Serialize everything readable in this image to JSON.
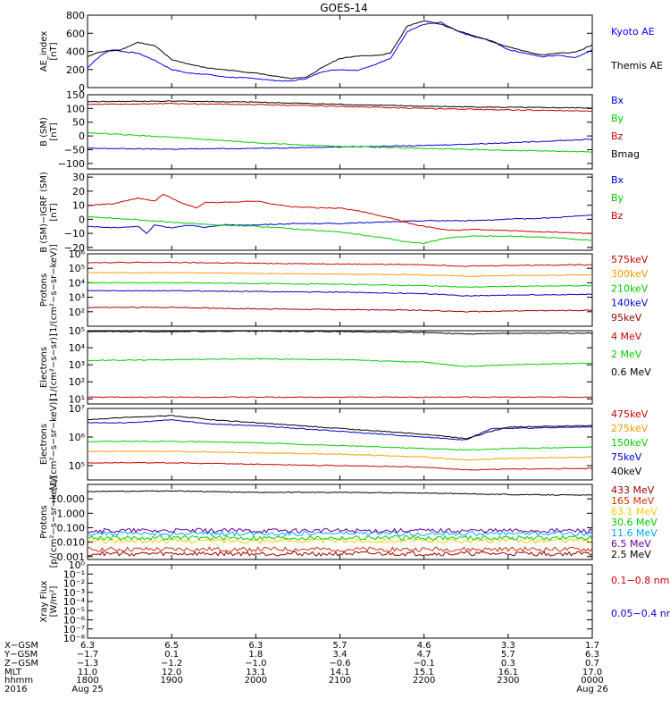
{
  "title": "GOES-14",
  "chart_data": [
    {
      "type": "line",
      "ylabel": "AE_index\n[nT]",
      "yaxis": {
        "scale": "linear",
        "min": 0,
        "max": 800,
        "ticks": [
          "800",
          "600",
          "400",
          "200",
          "0"
        ],
        "tick_values": [
          800,
          600,
          400,
          200,
          0
        ]
      },
      "series": [
        {
          "name": "Kyoto AE",
          "color": "#0000ff",
          "x": [
            0,
            0.1,
            0.2,
            0.3,
            0.4,
            0.6,
            0.8,
            1,
            1.2,
            1.4,
            1.6,
            1.8,
            2,
            2.2,
            2.4,
            2.6,
            2.8,
            3,
            3.2,
            3.4,
            3.6,
            3.8,
            4,
            4.2,
            4.4,
            4.6,
            4.8,
            5,
            5.2,
            5.4,
            5.6,
            5.8,
            6
          ],
          "y": [
            220,
            310,
            380,
            420,
            400,
            380,
            300,
            200,
            160,
            150,
            120,
            110,
            100,
            80,
            70,
            100,
            180,
            200,
            190,
            250,
            320,
            620,
            700,
            720,
            620,
            560,
            520,
            420,
            380,
            340,
            360,
            330,
            420
          ]
        },
        {
          "name": "Themis AE",
          "color": "#000000",
          "x": [
            0,
            0.1,
            0.2,
            0.3,
            0.4,
            0.6,
            0.8,
            1,
            1.2,
            1.4,
            1.6,
            1.8,
            2,
            2.2,
            2.4,
            2.6,
            2.8,
            3,
            3.2,
            3.4,
            3.6,
            3.8,
            4,
            4.2,
            4.4,
            4.6,
            4.8,
            5,
            5.2,
            5.4,
            5.6,
            5.8,
            6
          ],
          "y": [
            340,
            380,
            400,
            410,
            420,
            500,
            460,
            310,
            260,
            220,
            200,
            180,
            160,
            130,
            100,
            110,
            230,
            320,
            350,
            350,
            380,
            680,
            740,
            700,
            630,
            570,
            510,
            450,
            400,
            360,
            380,
            390,
            470
          ]
        }
      ],
      "legend": [
        "Kyoto AE",
        "Themis AE"
      ]
    },
    {
      "type": "line",
      "ylabel": "B (SM)\n[nT]",
      "yaxis": {
        "scale": "linear",
        "min": -120,
        "max": 150,
        "ticks": [
          "150",
          "100",
          "50",
          "0",
          "−50",
          "−100"
        ],
        "tick_values": [
          150,
          100,
          50,
          0,
          -50,
          -100
        ]
      },
      "series": [
        {
          "name": "Bx",
          "color": "#0000cc",
          "x": [
            0,
            1,
            2,
            3,
            4,
            5,
            6
          ],
          "y": [
            -45,
            -48,
            -45,
            -40,
            -35,
            -25,
            -12
          ]
        },
        {
          "name": "By",
          "color": "#00cc00",
          "x": [
            0,
            1,
            2,
            3,
            4,
            5,
            6
          ],
          "y": [
            12,
            -5,
            -25,
            -38,
            -45,
            -52,
            -58
          ]
        },
        {
          "name": "Bz",
          "color": "#cc0000",
          "x": [
            0,
            1,
            2,
            3,
            4,
            5,
            6
          ],
          "y": [
            115,
            118,
            114,
            108,
            100,
            95,
            90
          ]
        },
        {
          "name": "Bmag",
          "color": "#000000",
          "x": [
            0,
            1,
            2,
            3,
            4,
            5,
            6
          ],
          "y": [
            125,
            127,
            123,
            115,
            108,
            104,
            102
          ]
        }
      ],
      "legend": [
        "Bx",
        "By",
        "Bz",
        "Bmag"
      ]
    },
    {
      "type": "line",
      "ylabel": "B (SM)−IGRF (SM)\n[nT]",
      "yaxis": {
        "scale": "linear",
        "min": -22,
        "max": 32,
        "ticks": [
          "30",
          "20",
          "10",
          "0",
          "−10",
          "−20"
        ],
        "tick_values": [
          30,
          20,
          10,
          0,
          -10,
          -20
        ]
      },
      "series": [
        {
          "name": "Bx",
          "color": "#0000cc",
          "x": [
            0,
            0.3,
            0.6,
            0.7,
            0.8,
            1,
            1.2,
            1.4,
            1.6,
            2,
            2.5,
            3,
            3.5,
            4,
            4.5,
            5,
            5.5,
            6
          ],
          "y": [
            -5,
            -6,
            -5,
            -10,
            -4,
            -6,
            -4,
            -6,
            -4,
            -4,
            -3,
            -3,
            -2,
            -1,
            -1,
            0,
            1,
            3
          ]
        },
        {
          "name": "By",
          "color": "#00cc00",
          "x": [
            0,
            0.5,
            1,
            1.5,
            2,
            2.5,
            3,
            3.5,
            3.8,
            4,
            4.3,
            4.6,
            5,
            5.5,
            6
          ],
          "y": [
            2,
            0,
            -2,
            -4,
            -5,
            -7,
            -9,
            -13,
            -16,
            -17,
            -13,
            -12,
            -12,
            -13,
            -15
          ]
        },
        {
          "name": "Bz",
          "color": "#cc0000",
          "x": [
            0,
            0.3,
            0.6,
            0.8,
            0.9,
            1.1,
            1.3,
            1.4,
            1.6,
            2,
            2.4,
            2.8,
            3,
            3.3,
            3.6,
            3.9,
            4.2,
            4.4,
            4.6,
            5,
            5.5,
            6
          ],
          "y": [
            10,
            11,
            15,
            13,
            18,
            12,
            8,
            12,
            12,
            13,
            9,
            8,
            8,
            5,
            1,
            -4,
            -7,
            -8,
            -7,
            -8,
            -9,
            -10
          ]
        }
      ],
      "legend": [
        "Bx",
        "By",
        "Bz"
      ]
    },
    {
      "type": "line",
      "ylabel": "Protons\n[1/(cm²−s−sr−keV)]",
      "yaxis": {
        "scale": "log",
        "min": 1,
        "max": 6,
        "ticks": [
          "10⁶",
          "10⁵",
          "10⁴",
          "10³",
          "10²"
        ],
        "tick_values": [
          6,
          5,
          4,
          3,
          2
        ]
      },
      "series": [
        {
          "name": "575keV",
          "color": "#cc0000",
          "x": [
            0,
            1,
            2,
            3,
            4,
            4.5,
            5,
            6
          ],
          "y": [
            5.4,
            5.4,
            5.35,
            5.3,
            5.25,
            5.15,
            5.2,
            5.25
          ]
        },
        {
          "name": "300keV",
          "color": "#ff9900",
          "x": [
            0,
            1,
            2,
            3,
            4,
            4.5,
            5,
            6
          ],
          "y": [
            4.7,
            4.7,
            4.65,
            4.6,
            4.55,
            4.45,
            4.5,
            4.55
          ]
        },
        {
          "name": "210keV",
          "color": "#00cc00",
          "x": [
            0,
            1,
            2,
            3,
            4,
            4.5,
            5,
            6
          ],
          "y": [
            4.0,
            4.0,
            3.95,
            3.9,
            3.8,
            3.7,
            3.75,
            3.8
          ]
        },
        {
          "name": "140keV",
          "color": "#0000cc",
          "x": [
            0,
            1,
            2,
            3,
            4,
            4.5,
            5,
            6
          ],
          "y": [
            3.45,
            3.45,
            3.4,
            3.35,
            3.25,
            3.1,
            3.15,
            3.2
          ]
        },
        {
          "name": "95keV",
          "color": "#990000",
          "x": [
            0,
            1,
            2,
            3,
            4,
            4.5,
            5,
            6
          ],
          "y": [
            2.3,
            2.3,
            2.2,
            2.15,
            2.1,
            2.0,
            2.05,
            2.1
          ]
        }
      ],
      "legend": [
        "575keV",
        "300keV",
        "210keV",
        "140keV",
        "95keV"
      ]
    },
    {
      "type": "line",
      "ylabel": "Electrons\n[1/(cm²−s−sr)]",
      "yaxis": {
        "scale": "log",
        "min": 0.7,
        "max": 5,
        "ticks": [
          "10⁵",
          "10⁴",
          "10³",
          "10²",
          "10¹"
        ],
        "tick_values": [
          5,
          4,
          3,
          2,
          1
        ]
      },
      "series": [
        {
          "name": "4 MeV",
          "color": "#cc0000",
          "x": [
            0,
            1,
            2,
            3,
            4,
            5,
            6
          ],
          "y": [
            1.1,
            1.1,
            1.1,
            1.1,
            1.1,
            1.1,
            1.1
          ]
        },
        {
          "name": "2 MeV",
          "color": "#00cc00",
          "x": [
            0,
            1,
            2,
            3,
            4,
            4.5,
            5,
            6
          ],
          "y": [
            3.25,
            3.3,
            3.35,
            3.3,
            3.15,
            2.9,
            3.0,
            3.1
          ]
        },
        {
          "name": "0.6 MeV",
          "color": "#000000",
          "x": [
            0,
            1,
            2,
            3,
            4,
            4.5,
            5,
            6
          ],
          "y": [
            4.95,
            4.95,
            4.97,
            4.95,
            4.9,
            4.8,
            4.85,
            4.85
          ]
        }
      ],
      "legend": [
        "4 MeV",
        "2 MeV",
        "0.6 MeV"
      ]
    },
    {
      "type": "line",
      "ylabel": "Electrons\n[1/(cm²−s−sr−keV)]",
      "yaxis": {
        "scale": "log",
        "min": 4.5,
        "max": 7,
        "ticks": [
          "10⁷",
          "10⁶",
          "10⁵"
        ],
        "tick_values": [
          7,
          6,
          5
        ]
      },
      "series": [
        {
          "name": "475keV",
          "color": "#cc0000",
          "x": [
            0,
            1,
            2,
            3,
            4,
            4.5,
            5,
            6
          ],
          "y": [
            5.1,
            5.1,
            5.05,
            5.0,
            4.95,
            4.85,
            4.88,
            4.9
          ]
        },
        {
          "name": "275keV",
          "color": "#ff9900",
          "x": [
            0,
            1,
            2,
            3,
            4,
            4.5,
            5,
            6
          ],
          "y": [
            5.5,
            5.5,
            5.45,
            5.4,
            5.3,
            5.2,
            5.25,
            5.3
          ]
        },
        {
          "name": "150keV",
          "color": "#00cc00",
          "x": [
            0,
            1,
            2,
            3,
            4,
            4.5,
            5,
            6
          ],
          "y": [
            5.85,
            5.85,
            5.8,
            5.7,
            5.6,
            5.55,
            5.6,
            5.65
          ]
        },
        {
          "name": "75keV",
          "color": "#0000cc",
          "x": [
            0,
            0.5,
            1,
            1.5,
            2,
            3,
            4,
            4.5,
            4.8,
            5,
            6
          ],
          "y": [
            6.5,
            6.5,
            6.6,
            6.45,
            6.4,
            6.2,
            6.0,
            5.9,
            6.3,
            6.3,
            6.35
          ]
        },
        {
          "name": "40keV",
          "color": "#000000",
          "x": [
            0,
            0.5,
            1,
            1.5,
            2,
            3,
            4,
            4.5,
            4.8,
            5,
            6
          ],
          "y": [
            6.6,
            6.7,
            6.75,
            6.6,
            6.5,
            6.3,
            6.1,
            5.95,
            6.2,
            6.35,
            6.4
          ]
        }
      ],
      "legend": [
        "475keV",
        "275keV",
        "150keV",
        "75keV",
        "40keV"
      ]
    },
    {
      "type": "line",
      "ylabel": "Protons\n[p/(cm²−s−sr−keV)]",
      "yaxis": {
        "scale": "log",
        "min": -3.2,
        "max": 2,
        "ticks": [
          "10.000",
          "1.000",
          "0.100",
          "0.010",
          "0.001"
        ],
        "tick_values": [
          1,
          0,
          -1,
          -2,
          -3
        ]
      },
      "series": [
        {
          "name": "433 MeV",
          "color": "#990000",
          "x": [
            0,
            6
          ],
          "y": [
            -2.8,
            -2.8
          ]
        },
        {
          "name": "165 MeV",
          "color": "#cc3300",
          "x": [
            0,
            6
          ],
          "y": [
            -2.5,
            -2.5
          ]
        },
        {
          "name": "63.1 MeV",
          "color": "#ffcc00",
          "x": [
            0,
            6
          ],
          "y": [
            -1.9,
            -1.9
          ]
        },
        {
          "name": "30.6 MeV",
          "color": "#00cc00",
          "x": [
            0,
            6
          ],
          "y": [
            -1.7,
            -1.7
          ]
        },
        {
          "name": "11.6 MeV",
          "color": "#00aaff",
          "x": [
            0,
            6
          ],
          "y": [
            -1.4,
            -1.4
          ]
        },
        {
          "name": "6.5 MeV",
          "color": "#660099",
          "x": [
            0,
            6
          ],
          "y": [
            -1.2,
            -1.2
          ]
        },
        {
          "name": "2.5 MeV",
          "color": "#000000",
          "x": [
            0,
            1,
            2,
            3,
            4,
            5,
            6
          ],
          "y": [
            1.5,
            1.55,
            1.45,
            1.45,
            1.4,
            1.3,
            1.25
          ]
        }
      ],
      "legend": [
        "433 MeV",
        "165 MeV",
        "63.1 MeV",
        "30.6 MeV",
        "11.6 MeV",
        "6.5 MeV",
        "2.5 MeV"
      ]
    },
    {
      "type": "line",
      "ylabel": "Xray Flux\n[W/m²]",
      "yaxis": {
        "scale": "log",
        "min": -8,
        "max": 0,
        "ticks": [
          "10⁰",
          "10⁻¹",
          "10⁻²",
          "10⁻³",
          "10⁻⁴",
          "10⁻⁵",
          "10⁻⁶",
          "10⁻⁷",
          "10⁻⁸"
        ],
        "tick_values": [
          0,
          -1,
          -2,
          -3,
          -4,
          -5,
          -6,
          -7,
          -8
        ]
      },
      "series": [],
      "legend_entries": [
        {
          "name": "0.1−0.8 nm",
          "color": "#cc0000"
        },
        {
          "name": "0.05−0.4 nm",
          "color": "#0000cc"
        }
      ]
    }
  ],
  "xaxis": {
    "ticks": [
      {
        "x": 0,
        "xgsm": "6.3",
        "ygsm": "−1.7",
        "zgsm": "−1.3",
        "mlt": "11.0",
        "hhmm": "1800",
        "date": "Aug 25"
      },
      {
        "x": 1,
        "xgsm": "6.5",
        "ygsm": "0.1",
        "zgsm": "−1.2",
        "mlt": "12.0",
        "hhmm": "1900",
        "date": ""
      },
      {
        "x": 2,
        "xgsm": "6.3",
        "ygsm": "1.8",
        "zgsm": "−1.0",
        "mlt": "13.1",
        "hhmm": "2000",
        "date": ""
      },
      {
        "x": 3,
        "xgsm": "5.7",
        "ygsm": "3.4",
        "zgsm": "−0.6",
        "mlt": "14.1",
        "hhmm": "2100",
        "date": ""
      },
      {
        "x": 4,
        "xgsm": "4.6",
        "ygsm": "4.7",
        "zgsm": "−0.1",
        "mlt": "15.1",
        "hhmm": "2200",
        "date": ""
      },
      {
        "x": 5,
        "xgsm": "3.3",
        "ygsm": "5.7",
        "zgsm": "0.3",
        "mlt": "16.1",
        "hhmm": "2300",
        "date": ""
      },
      {
        "x": 6,
        "xgsm": "1.7",
        "ygsm": "6.3",
        "zgsm": "0.7",
        "mlt": "17.0",
        "hhmm": "0000",
        "date": "Aug 26"
      }
    ],
    "row_labels": [
      "X−GSM",
      "Y−GSM",
      "Z−GSM",
      "MLT",
      "hhmm",
      "2016"
    ]
  }
}
